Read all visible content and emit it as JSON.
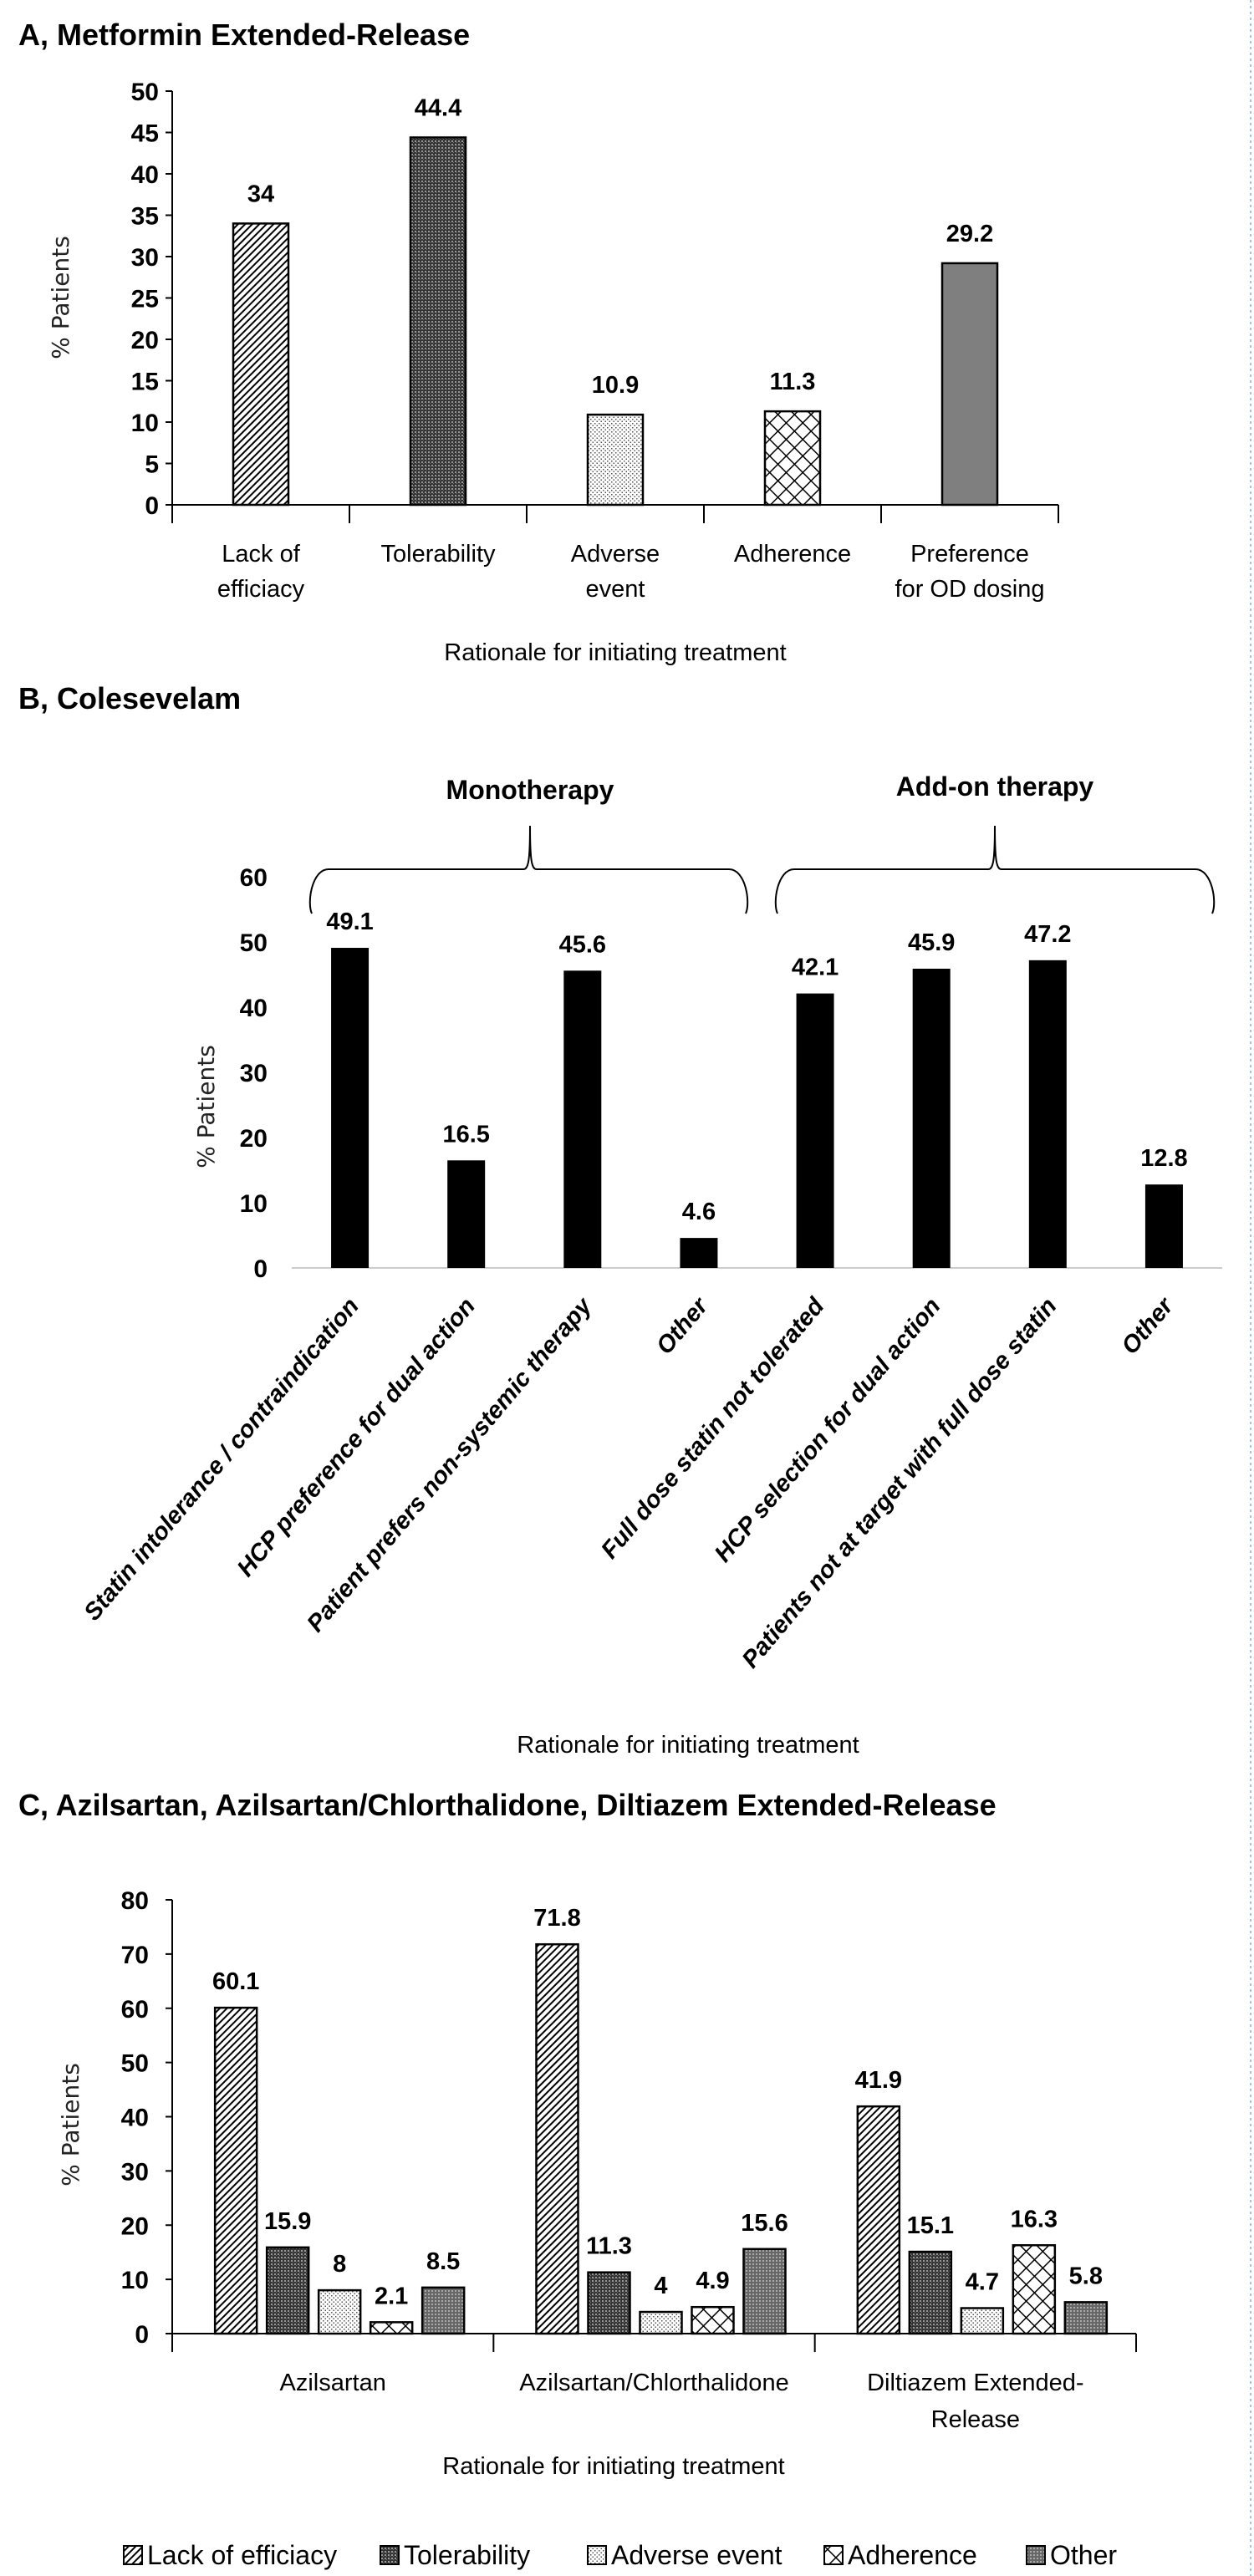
{
  "chart_data": [
    {
      "type": "bar",
      "title": "A, Metformin Extended-Release",
      "xlabel": "Rationale for initiating treatment",
      "ylabel": "% Patients",
      "ylim": [
        0,
        50
      ],
      "yticks": [
        0,
        5,
        10,
        15,
        20,
        25,
        30,
        35,
        40,
        45,
        50
      ],
      "categories": [
        [
          "Lack of",
          "efficiacy"
        ],
        [
          "Tolerability"
        ],
        [
          "Adverse",
          "event"
        ],
        [
          "Adherence"
        ],
        [
          "Preference",
          "for OD dosing"
        ]
      ],
      "values": [
        34,
        44.4,
        10.9,
        11.3,
        29.2
      ],
      "value_labels": [
        "34",
        "44.4",
        "10.9",
        "11.3",
        "29.2"
      ],
      "patterns": [
        "diag",
        "cross-dark",
        "dots",
        "diamond",
        "gray"
      ]
    },
    {
      "type": "bar",
      "title": "B, Colesevelam",
      "xlabel": "Rationale for initiating treatment",
      "ylabel": "% Patients",
      "ylim": [
        0,
        60
      ],
      "yticks": [
        0,
        10,
        20,
        30,
        40,
        50,
        60
      ],
      "groups": [
        {
          "label": "Monotherapy",
          "range": [
            0,
            3
          ]
        },
        {
          "label": "Add-on therapy",
          "range": [
            4,
            7
          ]
        }
      ],
      "categories": [
        "Statin intolerance / contraindication",
        "HCP preference for dual action",
        "Patient prefers non-systemic therapy",
        "Other",
        "Full dose statin not tolerated",
        "HCP selection for dual action",
        "Patients not at target with full dose statin",
        "Other"
      ],
      "values": [
        49.1,
        16.5,
        45.6,
        4.6,
        42.1,
        45.9,
        47.2,
        12.8
      ],
      "value_labels": [
        "49.1",
        "16.5",
        "45.6",
        "4.6",
        "42.1",
        "45.9",
        "47.2",
        "12.8"
      ],
      "bar_color": "#000000"
    },
    {
      "type": "bar",
      "title": "C, Azilsartan, Azilsartan/Chlorthalidone, Diltiazem Extended-Release",
      "xlabel": "Rationale for initiating treatment",
      "ylabel": "% Patients",
      "ylim": [
        0,
        80
      ],
      "yticks": [
        0,
        10,
        20,
        30,
        40,
        50,
        60,
        70,
        80
      ],
      "categories": [
        [
          "Azilsartan"
        ],
        [
          "Azilsartan/Chlorthalidone"
        ],
        [
          "Diltiazem Extended-",
          "Release"
        ]
      ],
      "series": [
        {
          "name": "Lack of efficiacy",
          "pattern": "diag",
          "values": [
            60.1,
            71.8,
            41.9
          ],
          "value_labels": [
            "60.1",
            "71.8",
            "41.9"
          ]
        },
        {
          "name": "Tolerability",
          "pattern": "cross-dark",
          "values": [
            15.9,
            11.3,
            15.1
          ],
          "value_labels": [
            "15.9",
            "11.3",
            "15.1"
          ]
        },
        {
          "name": "Adverse event",
          "pattern": "dots",
          "values": [
            8,
            4,
            4.7
          ],
          "value_labels": [
            "8",
            "4",
            "4.7"
          ]
        },
        {
          "name": "Adherence",
          "pattern": "diamond",
          "values": [
            2.1,
            4.9,
            16.3
          ],
          "value_labels": [
            "2.1",
            "4.9",
            "16.3"
          ]
        },
        {
          "name": "Other",
          "pattern": "gray-dots",
          "values": [
            8.5,
            15.6,
            5.8
          ],
          "value_labels": [
            "8.5",
            "15.6",
            "5.8"
          ]
        }
      ],
      "legend": "bottom"
    }
  ]
}
